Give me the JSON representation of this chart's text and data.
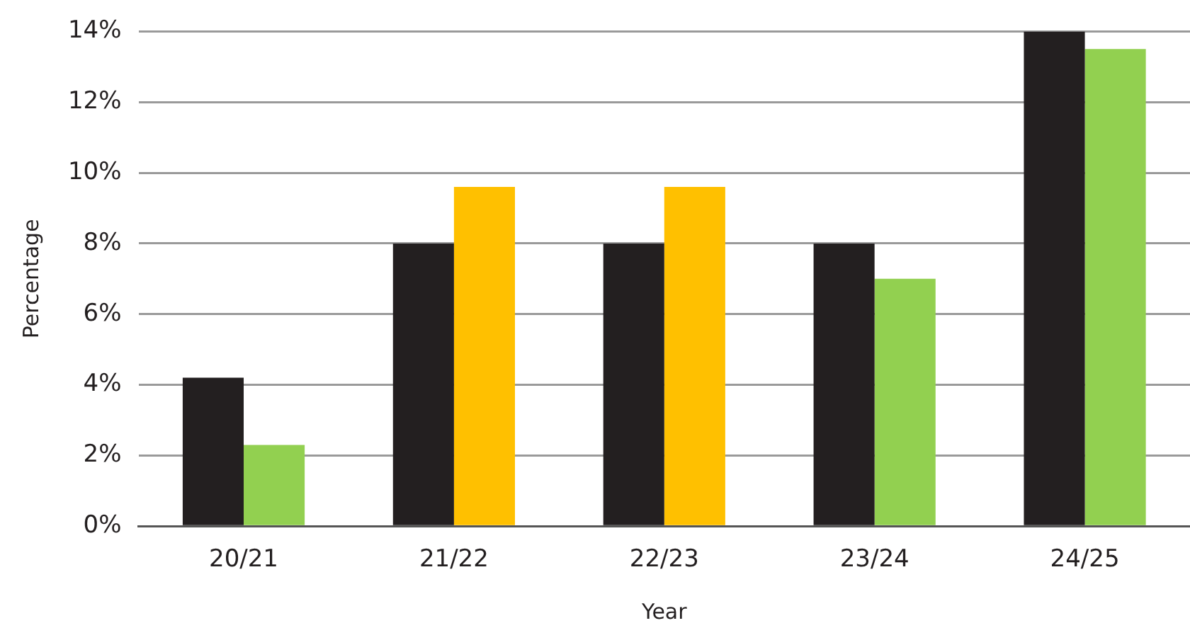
{
  "chart_data": {
    "type": "bar",
    "xlabel": "Year",
    "ylabel": "Percentage",
    "categories": [
      "20/21",
      "21/22",
      "22/23",
      "23/24",
      "24/25"
    ],
    "series": [
      {
        "color": "#231f20",
        "values": [
          4.2,
          8.0,
          8.0,
          8.0,
          14.0
        ]
      },
      {
        "colors": [
          "#92d050",
          "#ffc000",
          "#ffc000",
          "#92d050",
          "#92d050"
        ],
        "values": [
          2.3,
          9.6,
          9.6,
          7.0,
          13.5
        ]
      }
    ],
    "ylim": [
      0,
      14
    ],
    "yticks": [
      {
        "value": 0,
        "label": "0%"
      },
      {
        "value": 2,
        "label": "2%"
      },
      {
        "value": 4,
        "label": "4%"
      },
      {
        "value": 6,
        "label": "6%"
      },
      {
        "value": 8,
        "label": "8%"
      },
      {
        "value": 10,
        "label": "10%"
      },
      {
        "value": 12,
        "label": "12%"
      },
      {
        "value": 14,
        "label": "14%"
      }
    ],
    "grid": "y",
    "legend": false
  }
}
